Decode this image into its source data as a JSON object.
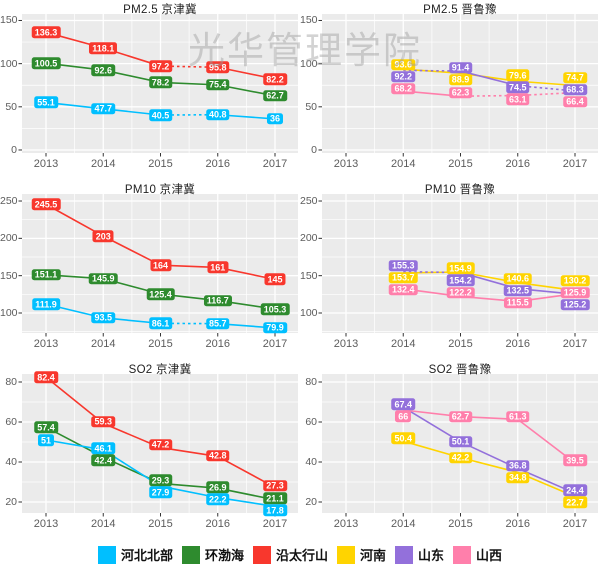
{
  "watermark": "光华管理学院",
  "legend": {
    "items": [
      {
        "label": "河北北部",
        "color": "#00BFFF"
      },
      {
        "label": "环渤海",
        "color": "#2E8B2E"
      },
      {
        "label": "沿太行山",
        "color": "#F8372D"
      },
      {
        "label": "河南",
        "color": "#FFD400"
      },
      {
        "label": "山东",
        "color": "#9370DB"
      },
      {
        "label": "山西",
        "color": "#FF7FAB"
      }
    ]
  },
  "chart_data": [
    {
      "type": "line",
      "title": "PM2.5 京津冀",
      "x_ticks": [
        "2013",
        "2014",
        "2015",
        "2016",
        "2017"
      ],
      "y_ticks": [
        0,
        50,
        100,
        150
      ],
      "ylim": [
        -3.5,
        157.5
      ],
      "grid": true,
      "series": [
        {
          "name": "沿太行山",
          "color": "#F8372D",
          "x": [
            2013,
            2014,
            2015,
            2016,
            2017
          ],
          "values": [
            136.3,
            118.1,
            97.2,
            95.8,
            82.2
          ],
          "dashed_segments": [
            [
              2,
              3
            ]
          ]
        },
        {
          "name": "环渤海",
          "color": "#2E8B2E",
          "x": [
            2013,
            2014,
            2015,
            2016,
            2017
          ],
          "values": [
            100.5,
            92.6,
            78.2,
            75.4,
            62.7
          ],
          "dashed_segments": []
        },
        {
          "name": "河北北部",
          "color": "#00BFFF",
          "x": [
            2013,
            2014,
            2015,
            2016,
            2017
          ],
          "values": [
            55.1,
            47.7,
            40.5,
            40.8,
            36
          ],
          "dashed_segments": [
            [
              2,
              3
            ]
          ]
        }
      ]
    },
    {
      "type": "line",
      "title": "PM2.5 晋鲁豫",
      "x_ticks": [
        "2013",
        "2014",
        "2015",
        "2016",
        "2017"
      ],
      "y_ticks": [
        0,
        50,
        100,
        150
      ],
      "ylim": [
        -3.5,
        157.5
      ],
      "grid": true,
      "series": [
        {
          "name": "河南",
          "color": "#FFD400",
          "x": [
            2014,
            2015,
            2016,
            2017
          ],
          "values": [
            93.6,
            88.9,
            79.6,
            74.7
          ],
          "dashed_segments": []
        },
        {
          "name": "山东",
          "color": "#9370DB",
          "x": [
            2014,
            2015,
            2016,
            2017
          ],
          "values": [
            92.2,
            91.4,
            74.5,
            68.3
          ],
          "dashed_segments": [
            [
              0,
              1
            ],
            [
              2,
              3
            ]
          ]
        },
        {
          "name": "山西",
          "color": "#FF7FAB",
          "x": [
            2014,
            2015,
            2016,
            2017
          ],
          "values": [
            68.2,
            62.3,
            63.1,
            66.4
          ],
          "dashed_segments": [
            [
              1,
              2
            ],
            [
              2,
              3
            ]
          ]
        }
      ]
    },
    {
      "type": "line",
      "title": "PM10 京津冀",
      "x_ticks": [
        "2013",
        "2014",
        "2015",
        "2016",
        "2017"
      ],
      "y_ticks": [
        100,
        150,
        200,
        250
      ],
      "ylim": [
        73.2,
        259.4
      ],
      "grid": true,
      "series": [
        {
          "name": "沿太行山",
          "color": "#F8372D",
          "x": [
            2013,
            2014,
            2015,
            2016,
            2017
          ],
          "values": [
            245.5,
            203,
            164,
            161,
            145
          ],
          "dashed_segments": []
        },
        {
          "name": "环渤海",
          "color": "#2E8B2E",
          "x": [
            2013,
            2014,
            2015,
            2016,
            2017
          ],
          "values": [
            151.1,
            145.9,
            125.4,
            116.7,
            105.3
          ],
          "dashed_segments": []
        },
        {
          "name": "河北北部",
          "color": "#00BFFF",
          "x": [
            2013,
            2014,
            2015,
            2016,
            2017
          ],
          "values": [
            111.9,
            93.5,
            86.1,
            85.7,
            79.9
          ],
          "dashed_segments": [
            [
              2,
              3
            ]
          ]
        }
      ]
    },
    {
      "type": "line",
      "title": "PM10 晋鲁豫",
      "x_ticks": [
        "2013",
        "2014",
        "2015",
        "2016",
        "2017"
      ],
      "y_ticks": [
        100,
        150,
        200,
        250
      ],
      "ylim": [
        73.2,
        259.4
      ],
      "grid": true,
      "series": [
        {
          "name": "河南",
          "color": "#FFD400",
          "x": [
            2014,
            2015,
            2016,
            2017
          ],
          "values": [
            153.7,
            154.9,
            140.6,
            130.2
          ],
          "dashed_segments": []
        },
        {
          "name": "山东",
          "color": "#9370DB",
          "x": [
            2014,
            2015,
            2016,
            2017
          ],
          "values": [
            155.3,
            154.2,
            132.5,
            125.2
          ],
          "dashed_segments": [
            [
              0,
              1
            ]
          ]
        },
        {
          "name": "山西",
          "color": "#FF7FAB",
          "x": [
            2014,
            2015,
            2016,
            2017
          ],
          "values": [
            132.4,
            122.2,
            115.5,
            125.9
          ],
          "dashed_segments": []
        }
      ]
    },
    {
      "type": "line",
      "title": "SO2 京津冀",
      "x_ticks": [
        "2013",
        "2014",
        "2015",
        "2016",
        "2017"
      ],
      "y_ticks": [
        20,
        40,
        60,
        80
      ],
      "ylim": [
        14.5,
        84
      ],
      "grid": true,
      "series": [
        {
          "name": "沿太行山",
          "color": "#F8372D",
          "x": [
            2013,
            2014,
            2015,
            2016,
            2017
          ],
          "values": [
            82.4,
            59.3,
            47.2,
            42.8,
            27.3
          ],
          "dashed_segments": []
        },
        {
          "name": "环渤海",
          "color": "#2E8B2E",
          "x": [
            2013,
            2014,
            2015,
            2016,
            2017
          ],
          "values": [
            57.4,
            42.4,
            29.3,
            26.9,
            21.1
          ],
          "dashed_segments": []
        },
        {
          "name": "河北北部",
          "color": "#00BFFF",
          "x": [
            2013,
            2014,
            2015,
            2016,
            2017
          ],
          "values": [
            51,
            46.1,
            27.9,
            22.2,
            17.8
          ],
          "dashed_segments": []
        }
      ]
    },
    {
      "type": "line",
      "title": "SO2 晋鲁豫",
      "x_ticks": [
        "2013",
        "2014",
        "2015",
        "2016",
        "2017"
      ],
      "y_ticks": [
        20,
        40,
        60,
        80
      ],
      "ylim": [
        14.5,
        84
      ],
      "grid": true,
      "series": [
        {
          "name": "河南",
          "color": "#FFD400",
          "x": [
            2014,
            2015,
            2016,
            2017
          ],
          "values": [
            50.4,
            42.2,
            34.8,
            22.7
          ],
          "dashed_segments": []
        },
        {
          "name": "山东",
          "color": "#9370DB",
          "x": [
            2014,
            2015,
            2016,
            2017
          ],
          "values": [
            67.4,
            50.1,
            36.8,
            24.4
          ],
          "dashed_segments": []
        },
        {
          "name": "山西",
          "color": "#FF7FAB",
          "x": [
            2014,
            2015,
            2016,
            2017
          ],
          "values": [
            66,
            62.7,
            61.3,
            39.5
          ],
          "dashed_segments": []
        }
      ]
    }
  ]
}
